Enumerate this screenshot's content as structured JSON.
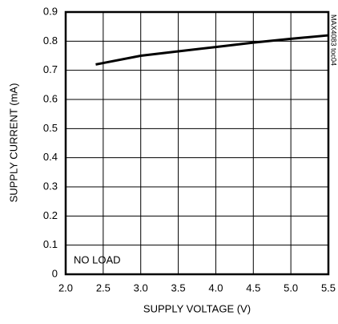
{
  "chart_data": {
    "type": "line",
    "x_label": "SUPPLY VOLTAGE (V)",
    "y_label": "SUPPLY CURRENT (mA)",
    "annotations": [
      "NO LOAD",
      "MAX4083 toc04"
    ],
    "series": [
      {
        "name": "NO LOAD",
        "color": "#000000",
        "x": [
          2.4,
          2.5,
          3.0,
          3.5,
          4.0,
          4.5,
          5.0,
          5.5
        ],
        "values": [
          0.72,
          0.725,
          0.75,
          0.765,
          0.78,
          0.795,
          0.808,
          0.82
        ]
      }
    ],
    "xlim": [
      2.0,
      5.5
    ],
    "xticks": [
      {
        "value": 2,
        "label": "2.0"
      },
      2.5,
      {
        "value": 3,
        "label": "3.0"
      },
      3.5,
      {
        "value": 4,
        "label": "4.0"
      },
      4.5,
      {
        "value": 5,
        "label": "5.0"
      },
      5.5
    ],
    "ylim": [
      0,
      0.9
    ],
    "yticks": [
      0,
      0.1,
      0.2,
      0.3,
      0.4,
      0.5,
      0.6,
      0.7,
      0.8,
      0.9
    ],
    "grid": true
  }
}
